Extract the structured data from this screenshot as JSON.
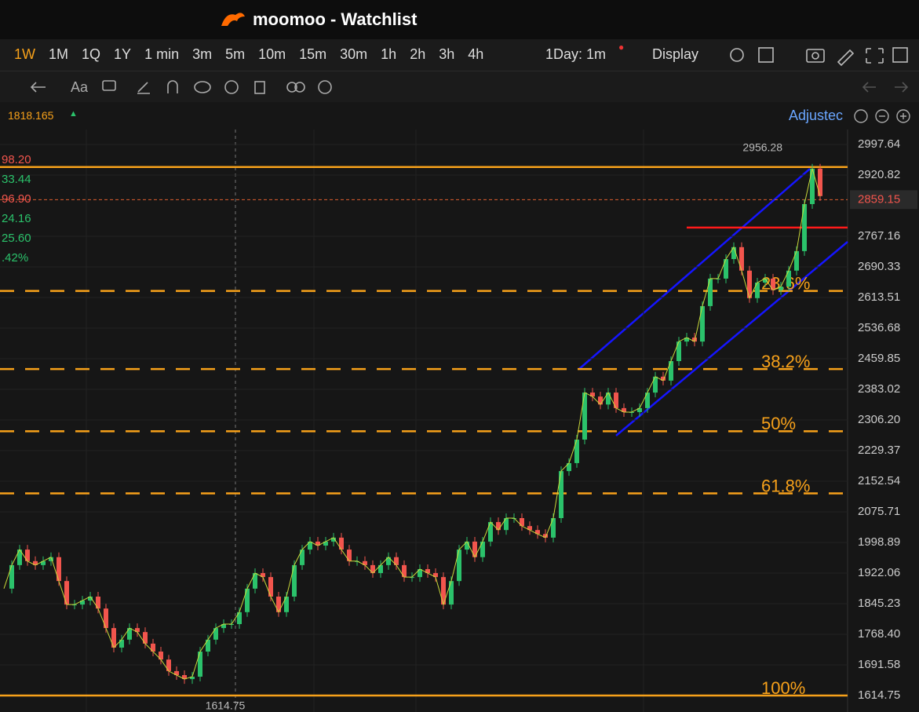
{
  "app": {
    "title": "moomoo - Watchlist"
  },
  "toolbar": {
    "timeframes": [
      "1W",
      "1M",
      "1Q",
      "1Y",
      "1 min",
      "3m",
      "5m",
      "10m",
      "15m",
      "30m",
      "1h",
      "2h",
      "3h",
      "4h"
    ],
    "interval": "1Day: 1m",
    "display": "Display",
    "text_tool": "Aa"
  },
  "info": {
    "value": "1818.165",
    "adjusted": "Adjustec",
    "side_labels": [
      "98.20",
      "33.44",
      "96.90",
      "24.16",
      "25.60",
      ".42%"
    ]
  },
  "chart_data": {
    "type": "candlestick",
    "values": [
      1883,
      1942,
      1981,
      1952,
      1942,
      1952,
      1962,
      1902,
      1843,
      1843,
      1853,
      1863,
      1833,
      1784,
      1735,
      1755,
      1784,
      1774,
      1745,
      1725,
      1705,
      1676,
      1666,
      1656,
      1662,
      1725,
      1755,
      1784,
      1794,
      1794,
      1824,
      1883,
      1922,
      1912,
      1863,
      1824,
      1863,
      1942,
      1981,
      2001,
      1991,
      2001,
      2011,
      1981,
      1952,
      1952,
      1942,
      1922,
      1942,
      1962,
      1942,
      1912,
      1912,
      1932,
      1922,
      1912,
      1843,
      1902,
      1981,
      2001,
      1962,
      2001,
      2050,
      2030,
      2060,
      2060,
      2040,
      2030,
      2020,
      2011,
      2060,
      2178,
      2198,
      2257,
      2375,
      2365,
      2345,
      2375,
      2336,
      2326,
      2326,
      2336,
      2375,
      2415,
      2405,
      2454,
      2503,
      2513,
      2503,
      2592,
      2661,
      2661,
      2710,
      2740,
      2681,
      2612,
      2651,
      2661,
      2632,
      2641,
      2681,
      2730,
      2848,
      2937,
      2868
    ],
    "ylim": [
      1573.4,
      3035.1
    ],
    "yticks": [
      2997.64,
      2920.82,
      2767.16,
      2690.33,
      2613.51,
      2536.68,
      2459.85,
      2383.02,
      {
        "value": 2306.2,
        "label": "2306.20"
      },
      2229.37,
      2152.54,
      2075.71,
      1998.89,
      1922.06,
      1845.23,
      {
        "value": 1768.4,
        "label": "1768.40"
      },
      1691.58,
      1614.75
    ],
    "last_price": 2859.15,
    "high_label": 2956.28,
    "low_label": 1614.75,
    "top_level": 2941,
    "resistance": 2789,
    "levels": [
      {
        "name": "23.6%",
        "value": 2630
      },
      {
        "name": "38.2%",
        "value": 2434
      },
      {
        "name": "50%",
        "value": 2278
      },
      {
        "name": "61.8%",
        "value": 2122
      },
      {
        "name": "100%",
        "value": 1614.75
      }
    ],
    "up_color": "#2bc26b",
    "down_color": "#f2554d",
    "level_color": "#f7a11a",
    "resistance_color": "#ff1a1a"
  }
}
